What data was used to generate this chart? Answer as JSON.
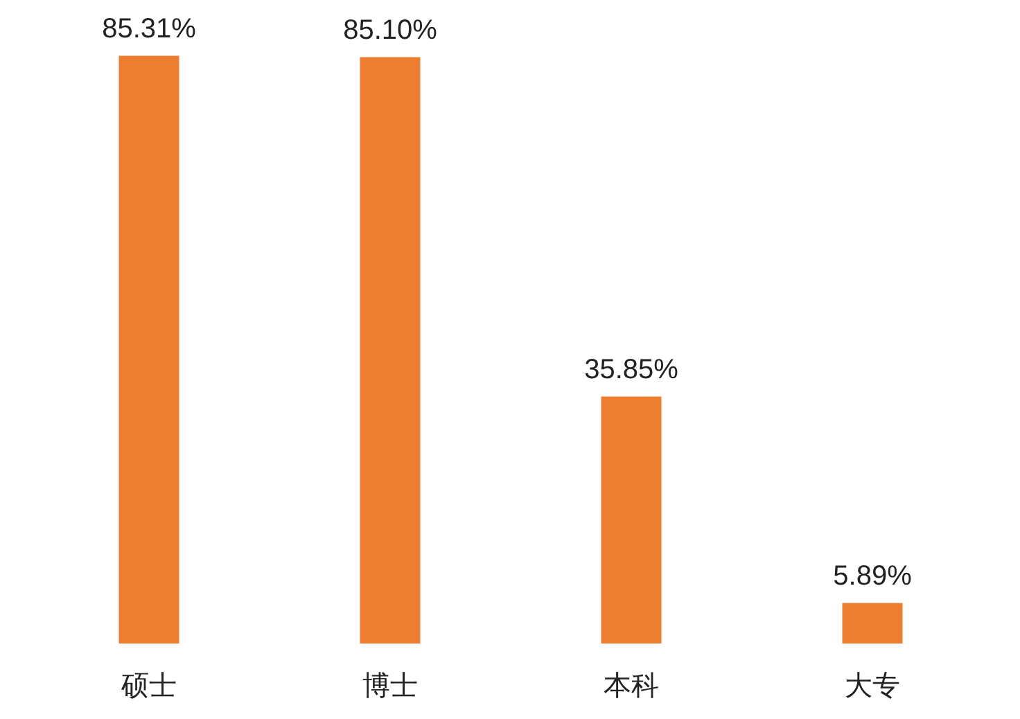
{
  "chart_data": {
    "type": "bar",
    "categories": [
      "硕士",
      "博士",
      "本科",
      "大专"
    ],
    "values": [
      85.31,
      85.1,
      35.85,
      5.89
    ],
    "color": "#ed7d31",
    "value_labels": [
      "85.31%",
      "85.10%",
      "35.85%",
      "5.89%"
    ]
  }
}
